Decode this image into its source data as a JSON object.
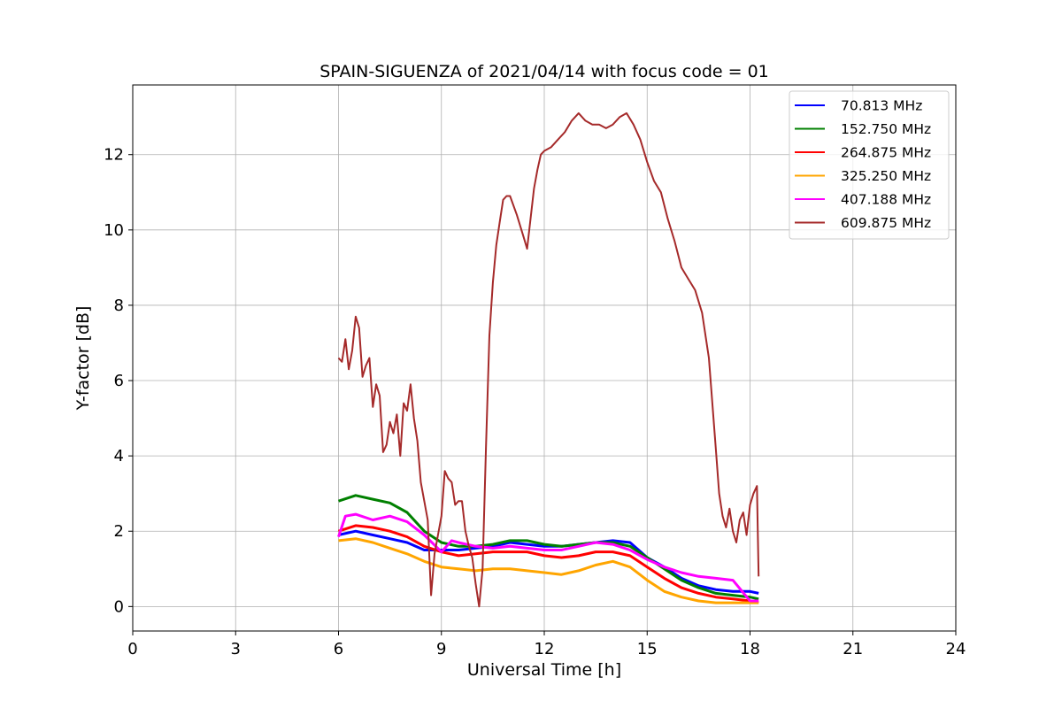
{
  "chart_data": {
    "type": "line",
    "title": "SPAIN-SIGUENZA of 2021/04/14 with focus code = 01",
    "xlabel": "Universal Time [h]",
    "ylabel": "Y-factor [dB]",
    "xlim": [
      0,
      24
    ],
    "ylim": [
      -0.65,
      13.85
    ],
    "xticks": [
      0,
      3,
      6,
      9,
      12,
      15,
      18,
      21,
      24
    ],
    "yticks": [
      0,
      2,
      4,
      6,
      8,
      10,
      12
    ],
    "grid": true,
    "legend_position": "top-right",
    "series": [
      {
        "name": " 70.813 MHz",
        "color": "#0000ff",
        "x": [
          6.0,
          6.5,
          7.0,
          7.5,
          8.0,
          8.5,
          9.0,
          9.5,
          10.0,
          10.5,
          11.0,
          11.5,
          12.0,
          12.5,
          13.0,
          13.5,
          14.0,
          14.5,
          15.0,
          15.5,
          16.0,
          16.5,
          17.0,
          17.5,
          18.0,
          18.25
        ],
        "y": [
          1.9,
          2.0,
          1.9,
          1.8,
          1.7,
          1.5,
          1.5,
          1.5,
          1.55,
          1.6,
          1.7,
          1.65,
          1.6,
          1.6,
          1.65,
          1.7,
          1.75,
          1.7,
          1.3,
          1.05,
          0.75,
          0.55,
          0.45,
          0.4,
          0.4,
          0.35
        ]
      },
      {
        "name": "152.750 MHz",
        "color": "#008000",
        "x": [
          6.0,
          6.5,
          7.0,
          7.5,
          8.0,
          8.5,
          9.0,
          9.5,
          10.0,
          10.5,
          11.0,
          11.5,
          12.0,
          12.5,
          13.0,
          13.5,
          14.0,
          14.5,
          15.0,
          15.5,
          16.0,
          16.5,
          17.0,
          17.5,
          18.0,
          18.25
        ],
        "y": [
          2.8,
          2.95,
          2.85,
          2.75,
          2.5,
          2.0,
          1.7,
          1.6,
          1.6,
          1.65,
          1.75,
          1.75,
          1.65,
          1.6,
          1.65,
          1.7,
          1.7,
          1.6,
          1.3,
          1.0,
          0.7,
          0.5,
          0.35,
          0.3,
          0.25,
          0.2
        ]
      },
      {
        "name": "264.875 MHz",
        "color": "#ff0000",
        "x": [
          6.0,
          6.5,
          7.0,
          7.5,
          8.0,
          8.5,
          9.0,
          9.5,
          10.0,
          10.5,
          11.0,
          11.5,
          12.0,
          12.5,
          13.0,
          13.5,
          14.0,
          14.5,
          15.0,
          15.5,
          16.0,
          16.5,
          17.0,
          17.5,
          18.0,
          18.25
        ],
        "y": [
          2.0,
          2.15,
          2.1,
          2.0,
          1.85,
          1.6,
          1.45,
          1.35,
          1.4,
          1.45,
          1.45,
          1.45,
          1.35,
          1.3,
          1.35,
          1.45,
          1.45,
          1.35,
          1.05,
          0.75,
          0.5,
          0.35,
          0.25,
          0.2,
          0.15,
          0.1
        ]
      },
      {
        "name": "325.250 MHz",
        "color": "#ffa500",
        "x": [
          6.0,
          6.5,
          7.0,
          7.5,
          8.0,
          8.5,
          9.0,
          9.5,
          10.0,
          10.5,
          11.0,
          11.5,
          12.0,
          12.5,
          13.0,
          13.5,
          14.0,
          14.5,
          15.0,
          15.5,
          16.0,
          16.5,
          17.0,
          17.5,
          18.0,
          18.25
        ],
        "y": [
          1.75,
          1.8,
          1.7,
          1.55,
          1.4,
          1.2,
          1.05,
          1.0,
          0.95,
          1.0,
          1.0,
          0.95,
          0.9,
          0.85,
          0.95,
          1.1,
          1.2,
          1.05,
          0.7,
          0.4,
          0.25,
          0.15,
          0.1,
          0.1,
          0.1,
          0.1
        ]
      },
      {
        "name": "407.188 MHz",
        "color": "#ff00ff",
        "x": [
          6.0,
          6.2,
          6.5,
          7.0,
          7.5,
          8.0,
          8.5,
          9.0,
          9.3,
          9.5,
          10.0,
          10.5,
          11.0,
          11.5,
          12.0,
          12.5,
          13.0,
          13.5,
          14.0,
          14.5,
          15.0,
          15.5,
          16.0,
          16.5,
          17.0,
          17.5,
          18.0,
          18.25
        ],
        "y": [
          1.85,
          2.4,
          2.45,
          2.3,
          2.4,
          2.25,
          1.9,
          1.45,
          1.75,
          1.7,
          1.6,
          1.55,
          1.6,
          1.55,
          1.5,
          1.5,
          1.6,
          1.7,
          1.65,
          1.5,
          1.25,
          1.05,
          0.9,
          0.8,
          0.75,
          0.7,
          0.15,
          0.15
        ]
      },
      {
        "name": "609.875 MHz",
        "color": "#a52a2a",
        "x": [
          6.0,
          6.1,
          6.2,
          6.3,
          6.4,
          6.5,
          6.6,
          6.7,
          6.8,
          6.9,
          7.0,
          7.1,
          7.2,
          7.3,
          7.4,
          7.5,
          7.6,
          7.7,
          7.8,
          7.9,
          8.0,
          8.1,
          8.2,
          8.3,
          8.4,
          8.5,
          8.6,
          8.7,
          8.8,
          8.9,
          9.0,
          9.1,
          9.2,
          9.3,
          9.4,
          9.5,
          9.6,
          9.7,
          9.8,
          9.9,
          10.0,
          10.1,
          10.2,
          10.3,
          10.4,
          10.5,
          10.6,
          10.7,
          10.8,
          10.9,
          11.0,
          11.2,
          11.4,
          11.5,
          11.6,
          11.7,
          11.8,
          11.9,
          12.0,
          12.2,
          12.4,
          12.6,
          12.8,
          13.0,
          13.2,
          13.4,
          13.6,
          13.8,
          14.0,
          14.2,
          14.4,
          14.6,
          14.8,
          15.0,
          15.2,
          15.4,
          15.6,
          15.8,
          16.0,
          16.2,
          16.4,
          16.6,
          16.8,
          17.0,
          17.1,
          17.2,
          17.3,
          17.4,
          17.5,
          17.6,
          17.7,
          17.8,
          17.9,
          18.0,
          18.1,
          18.2,
          18.25
        ],
        "y": [
          6.6,
          6.5,
          7.1,
          6.3,
          6.8,
          7.7,
          7.4,
          6.1,
          6.4,
          6.6,
          5.3,
          5.9,
          5.6,
          4.1,
          4.3,
          4.9,
          4.6,
          5.1,
          4.0,
          5.4,
          5.2,
          5.9,
          5.0,
          4.4,
          3.3,
          2.8,
          2.3,
          0.3,
          1.4,
          1.9,
          2.4,
          3.6,
          3.4,
          3.3,
          2.7,
          2.8,
          2.8,
          2.0,
          1.6,
          1.3,
          0.6,
          0.0,
          1.0,
          4.2,
          7.2,
          8.6,
          9.6,
          10.2,
          10.8,
          10.9,
          10.9,
          10.4,
          9.8,
          9.5,
          10.3,
          11.1,
          11.6,
          12.0,
          12.1,
          12.2,
          12.4,
          12.6,
          12.9,
          13.1,
          12.9,
          12.8,
          12.8,
          12.7,
          12.8,
          13.0,
          13.1,
          12.8,
          12.4,
          11.8,
          11.3,
          11.0,
          10.3,
          9.7,
          9.0,
          8.7,
          8.4,
          7.8,
          6.6,
          4.2,
          3.0,
          2.4,
          2.1,
          2.6,
          2.0,
          1.7,
          2.3,
          2.5,
          1.9,
          2.7,
          3.0,
          3.2,
          0.8
        ]
      }
    ]
  }
}
